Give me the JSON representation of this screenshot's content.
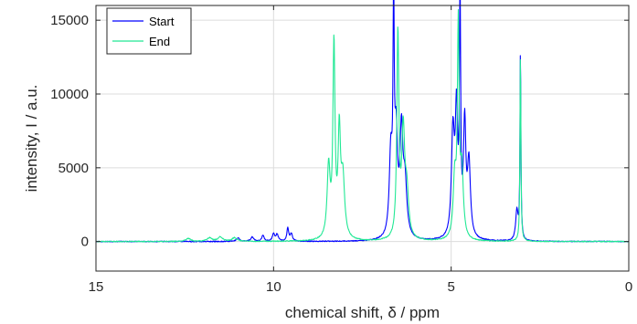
{
  "chart_data": {
    "type": "line",
    "xlabel": "chemical shift, δ / ppm",
    "ylabel": "intensity, I / a.u.",
    "xlim": [
      15,
      0
    ],
    "ylim": [
      -2000,
      16000
    ],
    "x_reversed": true,
    "x_ticks": [
      "15",
      "10",
      "5",
      "0"
    ],
    "y_ticks": [
      "0",
      "5000",
      "10000",
      "15000"
    ],
    "grid": true,
    "legend_position": "top-left",
    "series": [
      {
        "name": "Start",
        "color": "#0000ff",
        "peaks": [
          {
            "x": 11.0,
            "height": 250,
            "width": 0.05
          },
          {
            "x": 10.6,
            "height": 300,
            "width": 0.05
          },
          {
            "x": 10.3,
            "height": 400,
            "width": 0.04
          },
          {
            "x": 10.0,
            "height": 500,
            "width": 0.04
          },
          {
            "x": 9.9,
            "height": 450,
            "width": 0.04
          },
          {
            "x": 9.6,
            "height": 900,
            "width": 0.03
          },
          {
            "x": 9.5,
            "height": 500,
            "width": 0.04
          },
          {
            "x": 6.7,
            "height": 5500,
            "width": 0.05
          },
          {
            "x": 6.62,
            "height": 14500,
            "width": 0.02
          },
          {
            "x": 6.55,
            "height": 6500,
            "width": 0.05
          },
          {
            "x": 6.4,
            "height": 6800,
            "width": 0.05
          },
          {
            "x": 6.3,
            "height": 3500,
            "width": 0.06
          },
          {
            "x": 4.95,
            "height": 7000,
            "width": 0.05
          },
          {
            "x": 4.85,
            "height": 8000,
            "width": 0.04
          },
          {
            "x": 4.75,
            "height": 16000,
            "width": 0.02
          },
          {
            "x": 4.62,
            "height": 7500,
            "width": 0.04
          },
          {
            "x": 4.5,
            "height": 5000,
            "width": 0.05
          },
          {
            "x": 3.05,
            "height": 13000,
            "width": 0.015
          },
          {
            "x": 3.15,
            "height": 2000,
            "width": 0.04
          }
        ]
      },
      {
        "name": "End",
        "color": "#22e895",
        "peaks": [
          {
            "x": 12.4,
            "height": 200,
            "width": 0.08
          },
          {
            "x": 11.8,
            "height": 250,
            "width": 0.08
          },
          {
            "x": 11.5,
            "height": 300,
            "width": 0.08
          },
          {
            "x": 11.1,
            "height": 250,
            "width": 0.08
          },
          {
            "x": 8.45,
            "height": 4800,
            "width": 0.05
          },
          {
            "x": 8.3,
            "height": 13000,
            "width": 0.035
          },
          {
            "x": 8.15,
            "height": 6800,
            "width": 0.04
          },
          {
            "x": 8.05,
            "height": 4000,
            "width": 0.06
          },
          {
            "x": 6.5,
            "height": 13800,
            "width": 0.035
          },
          {
            "x": 6.35,
            "height": 7000,
            "width": 0.05
          },
          {
            "x": 6.25,
            "height": 3000,
            "width": 0.06
          },
          {
            "x": 4.9,
            "height": 4000,
            "width": 0.05
          },
          {
            "x": 4.8,
            "height": 14000,
            "width": 0.03
          },
          {
            "x": 4.7,
            "height": 4500,
            "width": 0.05
          },
          {
            "x": 3.05,
            "height": 13000,
            "width": 0.015
          }
        ]
      }
    ]
  }
}
